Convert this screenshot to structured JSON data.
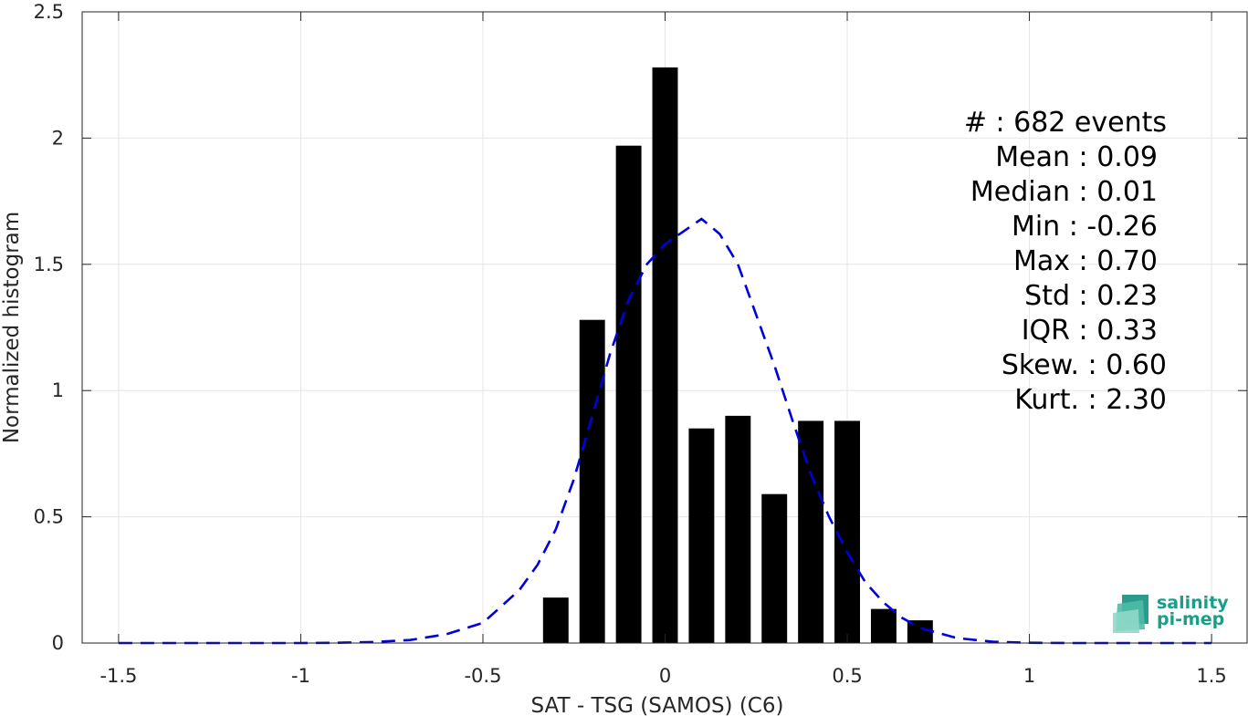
{
  "chart_data": {
    "type": "bar",
    "xlabel": "SAT - TSG (SAMOS) (C6)",
    "ylabel": "Normalized histogram",
    "xlim": [
      -1.6,
      1.6
    ],
    "ylim": [
      0,
      2.5
    ],
    "xticks": [
      -1.5,
      -1,
      -0.5,
      0,
      0.5,
      1,
      1.5
    ],
    "xtick_labels": [
      "-1.5",
      "-1",
      "-0.5",
      "0",
      "0.5",
      "1",
      "1.5"
    ],
    "yticks": [
      0,
      0.5,
      1,
      1.5,
      2,
      2.5
    ],
    "ytick_labels": [
      "0",
      "0.5",
      "1",
      "1.5",
      "2",
      "2.5"
    ],
    "grid": true,
    "bar_width": 0.07,
    "bars": {
      "x": [
        -0.3,
        -0.2,
        -0.1,
        0.0,
        0.1,
        0.2,
        0.3,
        0.4,
        0.5,
        0.6,
        0.7
      ],
      "values": [
        0.18,
        1.28,
        1.97,
        2.28,
        0.85,
        0.9,
        0.59,
        0.88,
        0.88,
        0.135,
        0.09
      ],
      "color": "#000000"
    },
    "fit_curve": {
      "style": "dashed",
      "color": "#0000dd",
      "x": [
        -1.5,
        -1.4,
        -1.3,
        -1.2,
        -1.1,
        -1.0,
        -0.9,
        -0.8,
        -0.7,
        -0.6,
        -0.5,
        -0.4,
        -0.35,
        -0.3,
        -0.25,
        -0.2,
        -0.15,
        -0.1,
        -0.05,
        0.0,
        0.05,
        0.1,
        0.15,
        0.2,
        0.25,
        0.3,
        0.35,
        0.4,
        0.45,
        0.5,
        0.55,
        0.6,
        0.65,
        0.7,
        0.8,
        0.9,
        1.0,
        1.1,
        1.2,
        1.3,
        1.4,
        1.5
      ],
      "y": [
        0.0,
        0.0,
        0.0,
        0.0,
        0.0,
        0.0,
        0.001,
        0.004,
        0.012,
        0.035,
        0.08,
        0.21,
        0.31,
        0.45,
        0.65,
        0.9,
        1.15,
        1.36,
        1.5,
        1.58,
        1.63,
        1.68,
        1.62,
        1.5,
        1.3,
        1.1,
        0.88,
        0.67,
        0.5,
        0.36,
        0.24,
        0.16,
        0.1,
        0.06,
        0.02,
        0.005,
        0.001,
        0.0,
        0.0,
        0.0,
        0.0,
        0.0
      ]
    },
    "annotations": [
      "#  : 682 events",
      "Mean : 0.09",
      "Median : 0.01",
      "Min : -0.26",
      "Max : 0.70",
      "Std : 0.23",
      "IQR : 0.33",
      "Skew. : 0.60",
      "Kurt. : 2.30"
    ]
  },
  "logo": {
    "line1": "salinity",
    "line2": "pi-mep",
    "color": "#1a9e8a"
  }
}
